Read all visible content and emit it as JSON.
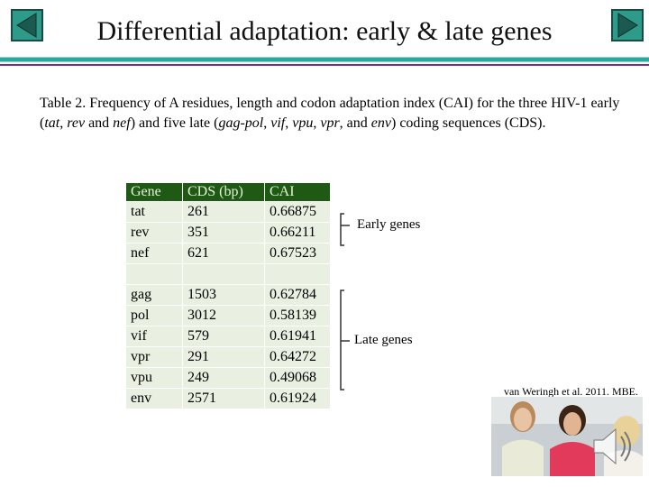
{
  "header": {
    "title": "Differential adaptation: early & late genes"
  },
  "caption": [
    "Table 2. Frequency of A residues, length and codon adaptation index (CAI) for the three HIV-1 early (",
    "tat",
    ", ",
    "rev",
    " and ",
    "nef",
    ") and five late (",
    "gag-pol",
    ", ",
    "vif",
    ", ",
    "vpu",
    ", ",
    "vpr",
    ", and ",
    "env",
    ") coding sequences (CDS)."
  ],
  "table": {
    "columns": [
      "Gene",
      "CDS (bp)",
      "CAI"
    ],
    "early_rows": [
      [
        "tat",
        261,
        0.66875
      ],
      [
        "rev",
        351,
        0.66211
      ],
      [
        "nef",
        621,
        0.67523
      ]
    ],
    "late_rows": [
      [
        "gag",
        1503,
        0.62784
      ],
      [
        "pol",
        3012,
        0.58139
      ],
      [
        "vif",
        579,
        0.61941
      ],
      [
        "vpr",
        291,
        0.64272
      ],
      [
        "vpu",
        249,
        0.49068
      ],
      [
        "env",
        2571,
        0.61924
      ]
    ]
  },
  "groups": {
    "early": "Early genes",
    "late": "Late genes"
  },
  "citation": "van Weringh et al. 2011. MBE."
}
